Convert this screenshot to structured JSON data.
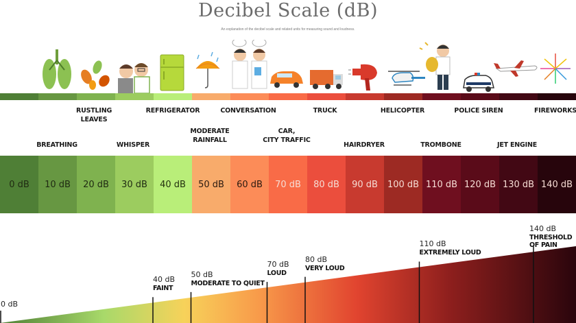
{
  "header": {
    "title": "Decibel Scale (dB)",
    "subtitle": "An explanation of the decibel scale and related units for measuring sound and loudness."
  },
  "icons": [
    "lungs-icon",
    "leaves-icon",
    "whisper-people-icon",
    "refrigerator-icon",
    "umbrella-rain-icon",
    "conversation-people-icon",
    "car-icon",
    "truck-icon",
    "hairdryer-icon",
    "helicopter-icon",
    "trombone-player-icon",
    "police-car-icon",
    "jet-plane-icon",
    "fireworks-icon"
  ],
  "sources_upper": [
    "RUSTLING\nLEAVES",
    "REFRIGERATOR",
    "CONVERSATION",
    "TRUCK",
    "HELICOPTER",
    "POLICE SIREN",
    "FIREWORKS"
  ],
  "sources_lower": [
    "BREATHING",
    "WHISPER",
    "MODERATE\nRAINFALL",
    "CAR,\nCITY TRAFFIC",
    "HAIRDRYER",
    "TROMBONE",
    "JET ENGINE"
  ],
  "scale": [
    {
      "label": "0 dB",
      "color": "#4f7f36"
    },
    {
      "label": "10 dB",
      "color": "#679742"
    },
    {
      "label": "20 dB",
      "color": "#7fb24f"
    },
    {
      "label": "30 dB",
      "color": "#9ccc5f"
    },
    {
      "label": "40 dB",
      "color": "#b9ee79"
    },
    {
      "label": "50 dB",
      "color": "#f8ab6b"
    },
    {
      "label": "60 dB",
      "color": "#fc8c58"
    },
    {
      "label": "70 dB",
      "color": "#f96b47"
    },
    {
      "label": "80 dB",
      "color": "#eb4e3d"
    },
    {
      "label": "90 dB",
      "color": "#c83a2f"
    },
    {
      "label": "100 dB",
      "color": "#9d2a23"
    },
    {
      "label": "110 dB",
      "color": "#6f0f1f"
    },
    {
      "label": "120 dB",
      "color": "#5a0b19"
    },
    {
      "label": "130 dB",
      "color": "#420814"
    },
    {
      "label": "140 dB",
      "color": "#27050c"
    }
  ],
  "loudness_markers": [
    {
      "db": "0 dB",
      "desc": ""
    },
    {
      "db": "40 dB",
      "desc": "FAINT"
    },
    {
      "db": "50 dB",
      "desc": "MODERATE TO QUIET"
    },
    {
      "db": "70 dB",
      "desc": "LOUD"
    },
    {
      "db": "80 dB",
      "desc": "VERY LOUD"
    },
    {
      "db": "110 dB",
      "desc": "EXTREMELY LOUD"
    },
    {
      "db": "140 dB",
      "desc": "THRESHOLD OF PAIN"
    }
  ]
}
